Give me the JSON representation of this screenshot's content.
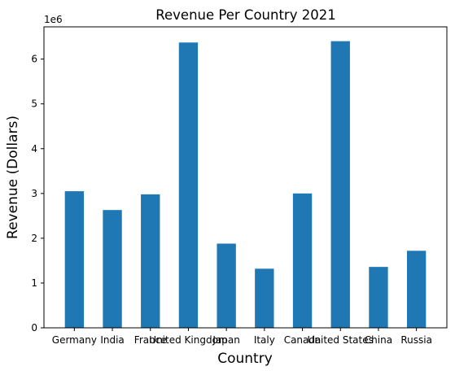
{
  "chart_data": {
    "type": "bar",
    "title": "Revenue Per Country 2021",
    "xlabel": "Country",
    "ylabel": "Revenue (Dollars)",
    "y_offset_label": "1e6",
    "categories": [
      "Germany",
      "India",
      "France",
      "United Kingdom",
      "Japan",
      "Italy",
      "Canada",
      "United States",
      "China",
      "Russia"
    ],
    "values": [
      3050000,
      2630000,
      2980000,
      6370000,
      1880000,
      1320000,
      3000000,
      6400000,
      1360000,
      1720000
    ],
    "ylim": [
      0,
      6720000
    ],
    "yticks": [
      0,
      1,
      2,
      3,
      4,
      5,
      6
    ],
    "bar_color": "#1f77b4",
    "grid": false
  }
}
